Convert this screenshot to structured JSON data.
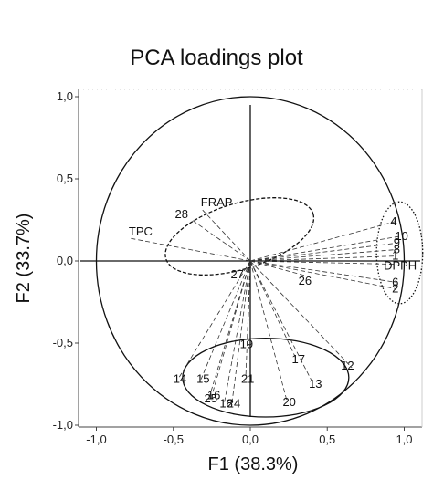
{
  "chart_data": {
    "type": "scatter",
    "title": "PCA loadings plot",
    "xlabel": "F1 (38.3%)",
    "ylabel": "F2 (33.7%)",
    "xlim": [
      -1.0,
      1.0
    ],
    "ylim": [
      -1.0,
      1.0
    ],
    "x_ticks": [
      "-1,0",
      "-0,5",
      "0,0",
      "0,5",
      "1,0"
    ],
    "y_ticks": [
      "1,0",
      "0,5",
      "0,0",
      "-0,5",
      "-1,0"
    ],
    "correlation_circle": true,
    "points": [
      {
        "label": "TPC",
        "x": -0.79,
        "y": 0.14
      },
      {
        "label": "FRAP",
        "x": -0.31,
        "y": 0.31
      },
      {
        "label": "28",
        "x": -0.38,
        "y": 0.25
      },
      {
        "label": "27",
        "x": -0.03,
        "y": -0.05
      },
      {
        "label": "26",
        "x": 0.36,
        "y": -0.09
      },
      {
        "label": "DPPH",
        "x": 0.95,
        "y": -0.02
      },
      {
        "label": "4",
        "x": 0.94,
        "y": 0.24
      },
      {
        "label": "10",
        "x": 0.97,
        "y": 0.15
      },
      {
        "label": "9",
        "x": 0.96,
        "y": 0.11
      },
      {
        "label": "8",
        "x": 0.96,
        "y": 0.07
      },
      {
        "label": "1",
        "x": 0.95,
        "y": 0.03
      },
      {
        "label": "6",
        "x": 0.95,
        "y": -0.13
      },
      {
        "label": "2",
        "x": 0.95,
        "y": -0.17
      },
      {
        "label": "19",
        "x": -0.02,
        "y": -0.52
      },
      {
        "label": "17",
        "x": 0.3,
        "y": -0.6
      },
      {
        "label": "12",
        "x": 0.66,
        "y": -0.65
      },
      {
        "label": "13",
        "x": 0.41,
        "y": -0.75
      },
      {
        "label": "21",
        "x": -0.03,
        "y": -0.72
      },
      {
        "label": "15",
        "x": -0.32,
        "y": -0.72
      },
      {
        "label": "14",
        "x": -0.47,
        "y": -0.72
      },
      {
        "label": "16",
        "x": -0.25,
        "y": -0.82
      },
      {
        "label": "25",
        "x": -0.27,
        "y": -0.84
      },
      {
        "label": "18",
        "x": -0.17,
        "y": -0.87
      },
      {
        "label": "24",
        "x": -0.12,
        "y": -0.87
      },
      {
        "label": "20",
        "x": 0.24,
        "y": -0.86
      }
    ],
    "groups": [
      {
        "style": "dashed",
        "cx": -0.07,
        "cy": 0.15,
        "rx": 0.5,
        "ry": 0.2,
        "rotate": -17
      },
      {
        "style": "dotted",
        "cx": 0.97,
        "cy": 0.05,
        "rx": 0.15,
        "ry": 0.31,
        "rotate": 0
      },
      {
        "style": "solid",
        "cx": 0.1,
        "cy": -0.71,
        "rx": 0.54,
        "ry": 0.24,
        "rotate": 0
      }
    ],
    "grid": false,
    "legend": "none"
  }
}
